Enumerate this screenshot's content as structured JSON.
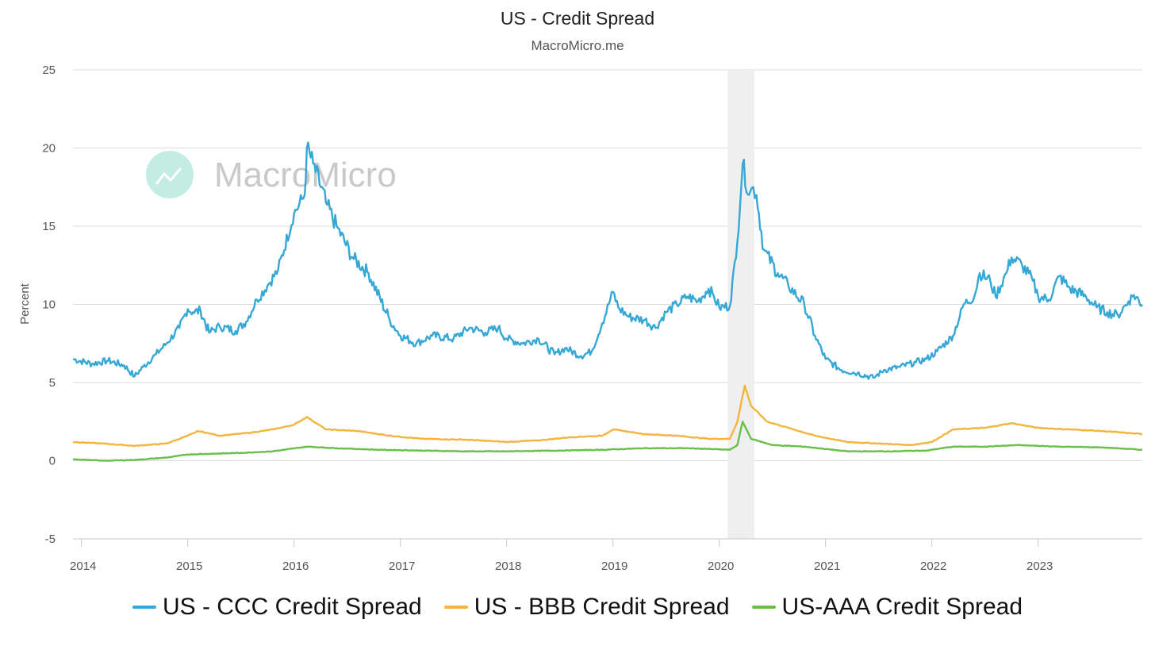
{
  "chart_data": {
    "type": "line",
    "title": "US - Credit Spread",
    "subtitle": "MacroMicro.me",
    "watermark": "MacroMicro",
    "ylabel": "Percent",
    "xlabel": "",
    "xlim": [
      2013.92,
      2023.98
    ],
    "ylim": [
      -5,
      25
    ],
    "yticks": [
      -5,
      0,
      5,
      10,
      15,
      20,
      25
    ],
    "xticks": [
      "2014",
      "2015",
      "2016",
      "2017",
      "2018",
      "2019",
      "2020",
      "2021",
      "2022",
      "2023"
    ],
    "xtick_values": [
      2014,
      2015,
      2016,
      2017,
      2018,
      2019,
      2020,
      2021,
      2022,
      2023
    ],
    "recession_band": [
      2020.08,
      2020.33
    ],
    "grid": true,
    "legend_position": "bottom",
    "series": [
      {
        "name": "US - CCC Credit Spread",
        "color": "#36a8d5",
        "points": [
          [
            2013.92,
            6.5
          ],
          [
            2014.1,
            6.2
          ],
          [
            2014.25,
            6.4
          ],
          [
            2014.4,
            6.1
          ],
          [
            2014.5,
            5.4
          ],
          [
            2014.58,
            6.0
          ],
          [
            2014.7,
            6.8
          ],
          [
            2014.8,
            7.5
          ],
          [
            2014.92,
            8.5
          ],
          [
            2015.0,
            9.7
          ],
          [
            2015.05,
            9.5
          ],
          [
            2015.12,
            9.6
          ],
          [
            2015.2,
            8.2
          ],
          [
            2015.3,
            8.6
          ],
          [
            2015.45,
            8.3
          ],
          [
            2015.55,
            8.9
          ],
          [
            2015.65,
            10.3
          ],
          [
            2015.75,
            11.2
          ],
          [
            2015.85,
            12.2
          ],
          [
            2016.0,
            15.8
          ],
          [
            2016.1,
            17.0
          ],
          [
            2016.12,
            20.0
          ],
          [
            2016.18,
            19.0
          ],
          [
            2016.3,
            16.5
          ],
          [
            2016.4,
            15.0
          ],
          [
            2016.55,
            13.0
          ],
          [
            2016.7,
            12.0
          ],
          [
            2016.9,
            9.0
          ],
          [
            2017.0,
            8.0
          ],
          [
            2017.15,
            7.5
          ],
          [
            2017.3,
            8.0
          ],
          [
            2017.5,
            7.8
          ],
          [
            2017.65,
            8.5
          ],
          [
            2017.8,
            8.2
          ],
          [
            2017.92,
            8.5
          ],
          [
            2018.0,
            7.8
          ],
          [
            2018.15,
            7.5
          ],
          [
            2018.3,
            7.8
          ],
          [
            2018.45,
            6.8
          ],
          [
            2018.55,
            7.2
          ],
          [
            2018.7,
            6.7
          ],
          [
            2018.8,
            7.0
          ],
          [
            2018.9,
            8.8
          ],
          [
            2019.0,
            10.8
          ],
          [
            2019.05,
            9.8
          ],
          [
            2019.15,
            9.2
          ],
          [
            2019.3,
            9.0
          ],
          [
            2019.4,
            8.5
          ],
          [
            2019.5,
            9.5
          ],
          [
            2019.6,
            10.0
          ],
          [
            2019.7,
            10.5
          ],
          [
            2019.8,
            10.2
          ],
          [
            2019.9,
            11.0
          ],
          [
            2019.95,
            10.5
          ],
          [
            2020.0,
            9.8
          ],
          [
            2020.1,
            9.9
          ],
          [
            2020.17,
            14.0
          ],
          [
            2020.22,
            19.0
          ],
          [
            2020.28,
            17.0
          ],
          [
            2020.32,
            17.5
          ],
          [
            2020.35,
            17.0
          ],
          [
            2020.42,
            13.5
          ],
          [
            2020.55,
            12.0
          ],
          [
            2020.65,
            11.2
          ],
          [
            2020.8,
            10.0
          ],
          [
            2020.9,
            8.0
          ],
          [
            2021.0,
            6.5
          ],
          [
            2021.15,
            5.8
          ],
          [
            2021.3,
            5.6
          ],
          [
            2021.45,
            5.3
          ],
          [
            2021.55,
            5.8
          ],
          [
            2021.7,
            6.0
          ],
          [
            2021.85,
            6.3
          ],
          [
            2021.95,
            6.5
          ],
          [
            2022.05,
            7.0
          ],
          [
            2022.2,
            8.0
          ],
          [
            2022.3,
            10.0
          ],
          [
            2022.4,
            10.5
          ],
          [
            2022.45,
            12.0
          ],
          [
            2022.55,
            11.5
          ],
          [
            2022.6,
            10.5
          ],
          [
            2022.7,
            12.0
          ],
          [
            2022.75,
            13.0
          ],
          [
            2022.85,
            12.5
          ],
          [
            2022.95,
            11.5
          ],
          [
            2023.0,
            10.5
          ],
          [
            2023.1,
            10.3
          ],
          [
            2023.2,
            11.8
          ],
          [
            2023.3,
            11.0
          ],
          [
            2023.45,
            10.5
          ],
          [
            2023.55,
            9.8
          ],
          [
            2023.65,
            9.5
          ],
          [
            2023.75,
            9.3
          ],
          [
            2023.85,
            10.2
          ],
          [
            2023.9,
            10.6
          ],
          [
            2023.98,
            10.0
          ]
        ]
      },
      {
        "name": "US - BBB Credit Spread",
        "color": "#f2b53f",
        "points": [
          [
            2013.92,
            1.2
          ],
          [
            2014.2,
            1.1
          ],
          [
            2014.5,
            0.95
          ],
          [
            2014.8,
            1.1
          ],
          [
            2015.0,
            1.6
          ],
          [
            2015.1,
            1.9
          ],
          [
            2015.3,
            1.6
          ],
          [
            2015.6,
            1.8
          ],
          [
            2015.8,
            2.0
          ],
          [
            2016.0,
            2.3
          ],
          [
            2016.12,
            2.8
          ],
          [
            2016.3,
            2.0
          ],
          [
            2016.6,
            1.9
          ],
          [
            2016.9,
            1.6
          ],
          [
            2017.2,
            1.4
          ],
          [
            2017.6,
            1.35
          ],
          [
            2018.0,
            1.2
          ],
          [
            2018.3,
            1.3
          ],
          [
            2018.6,
            1.5
          ],
          [
            2018.9,
            1.6
          ],
          [
            2019.0,
            2.0
          ],
          [
            2019.3,
            1.7
          ],
          [
            2019.6,
            1.6
          ],
          [
            2019.9,
            1.4
          ],
          [
            2020.1,
            1.4
          ],
          [
            2020.17,
            2.5
          ],
          [
            2020.24,
            4.8
          ],
          [
            2020.3,
            3.5
          ],
          [
            2020.45,
            2.5
          ],
          [
            2020.7,
            2.0
          ],
          [
            2020.9,
            1.6
          ],
          [
            2021.2,
            1.2
          ],
          [
            2021.5,
            1.1
          ],
          [
            2021.8,
            1.0
          ],
          [
            2022.0,
            1.2
          ],
          [
            2022.2,
            2.0
          ],
          [
            2022.5,
            2.1
          ],
          [
            2022.75,
            2.4
          ],
          [
            2023.0,
            2.1
          ],
          [
            2023.3,
            2.0
          ],
          [
            2023.6,
            1.9
          ],
          [
            2023.98,
            1.7
          ]
        ]
      },
      {
        "name": "US-AAA Credit Spread",
        "color": "#6abf4b",
        "points": [
          [
            2013.92,
            0.1
          ],
          [
            2014.2,
            0.0
          ],
          [
            2014.5,
            0.05
          ],
          [
            2014.8,
            0.2
          ],
          [
            2015.0,
            0.4
          ],
          [
            2015.5,
            0.5
          ],
          [
            2015.8,
            0.6
          ],
          [
            2016.12,
            0.9
          ],
          [
            2016.4,
            0.8
          ],
          [
            2016.8,
            0.7
          ],
          [
            2017.2,
            0.65
          ],
          [
            2017.6,
            0.6
          ],
          [
            2018.0,
            0.6
          ],
          [
            2018.5,
            0.65
          ],
          [
            2018.9,
            0.7
          ],
          [
            2019.3,
            0.8
          ],
          [
            2019.7,
            0.8
          ],
          [
            2020.1,
            0.7
          ],
          [
            2020.17,
            1.0
          ],
          [
            2020.22,
            2.5
          ],
          [
            2020.3,
            1.4
          ],
          [
            2020.5,
            1.0
          ],
          [
            2020.8,
            0.9
          ],
          [
            2021.2,
            0.6
          ],
          [
            2021.6,
            0.6
          ],
          [
            2021.95,
            0.65
          ],
          [
            2022.2,
            0.9
          ],
          [
            2022.5,
            0.9
          ],
          [
            2022.8,
            1.0
          ],
          [
            2023.2,
            0.9
          ],
          [
            2023.6,
            0.85
          ],
          [
            2023.98,
            0.7
          ]
        ]
      }
    ]
  }
}
